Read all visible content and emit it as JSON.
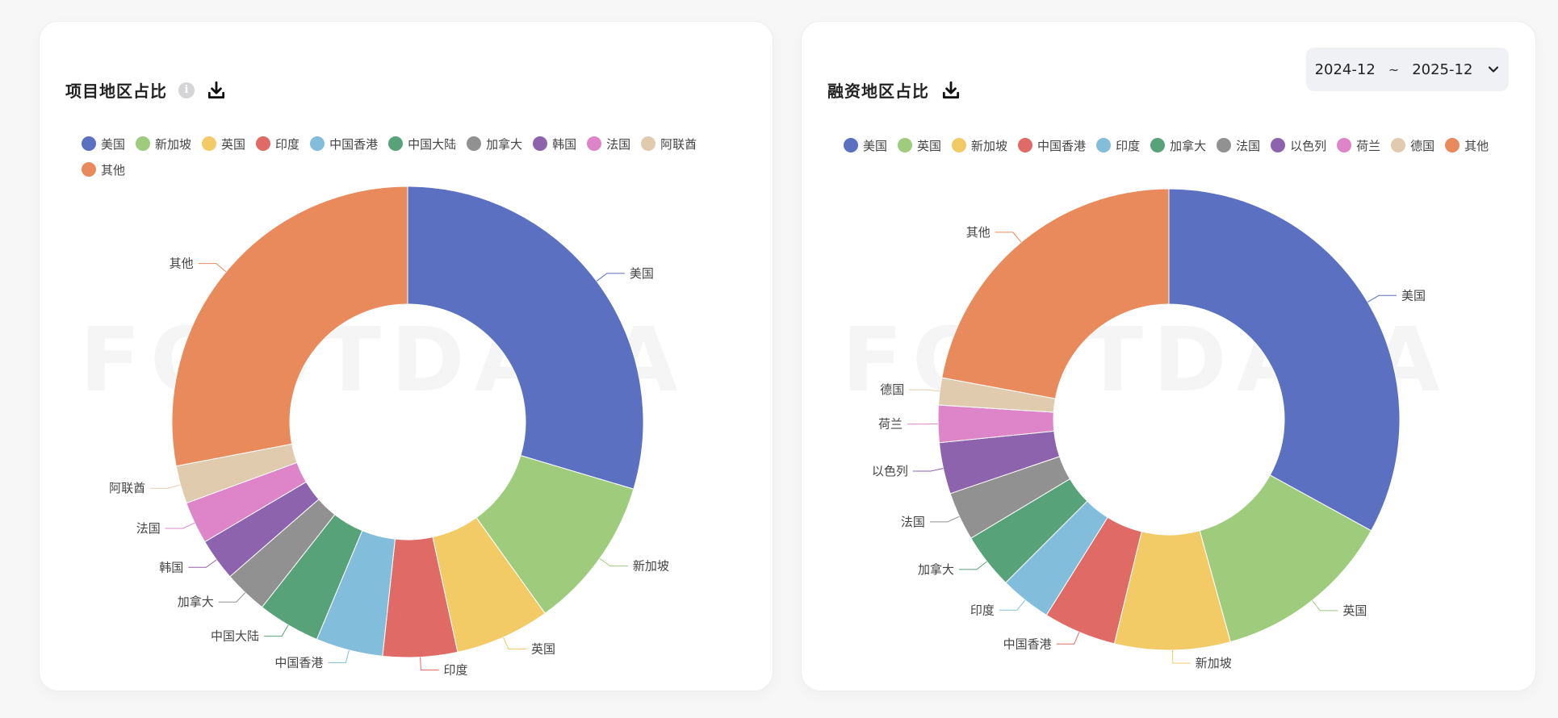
{
  "colors": {
    "page_bg": "#f7f7f8",
    "card_bg": "#ffffff",
    "picker_bg": "#eff1f4"
  },
  "watermark": "FOOTDATA",
  "left_card": {
    "title": "项目地区占比",
    "info_icon": "info-icon",
    "download_icon": "download-icon"
  },
  "right_card": {
    "title": "融资地区占比",
    "download_icon": "download-icon",
    "date_range": {
      "start": "2024-12",
      "separator": "~",
      "end": "2025-12",
      "icon": "chevron-down-icon"
    }
  },
  "chart_data": [
    {
      "type": "pie",
      "variant": "donut",
      "title": "项目地区占比",
      "legend_position": "top-left",
      "categories": [
        "美国",
        "新加坡",
        "英国",
        "印度",
        "中国香港",
        "中国大陆",
        "加拿大",
        "韩国",
        "法国",
        "阿联酋",
        "其他"
      ],
      "values": [
        29.6,
        10.5,
        6.5,
        5.1,
        4.6,
        4.3,
        3.0,
        2.9,
        2.9,
        2.6,
        28.0
      ],
      "unit": "% (estimated from slice angles)",
      "colors": [
        "#5b70c0",
        "#9fcb7d",
        "#f2cb67",
        "#e06a66",
        "#82bedb",
        "#57a278",
        "#919191",
        "#8e63ae",
        "#dd85c8",
        "#e0cbae",
        "#e98a5c"
      ]
    },
    {
      "type": "pie",
      "variant": "donut",
      "title": "融资地区占比",
      "legend_position": "top-left",
      "date_range": [
        "2024-12",
        "2025-12"
      ],
      "categories": [
        "美国",
        "英国",
        "新加坡",
        "中国香港",
        "印度",
        "加拿大",
        "法国",
        "以色列",
        "荷兰",
        "德国",
        "其他"
      ],
      "values": [
        33.0,
        12.7,
        8.1,
        5.1,
        3.6,
        3.9,
        3.4,
        3.6,
        2.6,
        1.9,
        22.1
      ],
      "unit": "% (estimated from slice angles)",
      "colors": [
        "#5b70c0",
        "#9fcb7d",
        "#f2cb67",
        "#e06a66",
        "#82bedb",
        "#57a278",
        "#919191",
        "#8e63ae",
        "#dd85c8",
        "#e0cbae",
        "#e98a5c"
      ]
    }
  ]
}
